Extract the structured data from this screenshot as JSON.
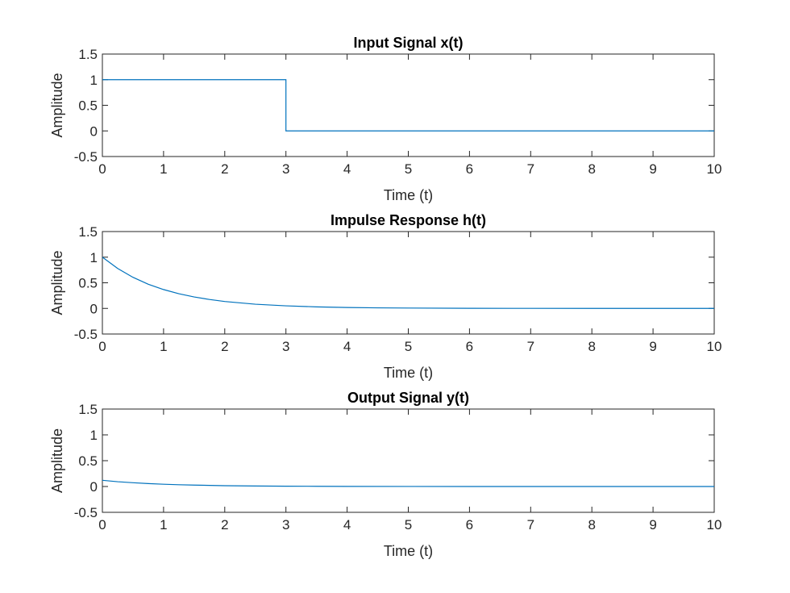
{
  "chart_data": [
    {
      "type": "line",
      "title": "Input Signal x(t)",
      "xlabel": "Time (t)",
      "ylabel": "Amplitude",
      "xlim": [
        0,
        10
      ],
      "ylim": [
        -0.5,
        1.5
      ],
      "xticks": [
        0,
        1,
        2,
        3,
        4,
        5,
        6,
        7,
        8,
        9,
        10
      ],
      "yticks": [
        -0.5,
        0,
        0.5,
        1,
        1.5
      ],
      "grid": false,
      "color": "#0072bd",
      "series": [
        {
          "x": [
            0,
            3,
            3,
            10
          ],
          "y": [
            1,
            1,
            0,
            0
          ]
        }
      ]
    },
    {
      "type": "line",
      "title": "Impulse Response h(t)",
      "xlabel": "Time (t)",
      "ylabel": "Amplitude",
      "xlim": [
        0,
        10
      ],
      "ylim": [
        -0.5,
        1.5
      ],
      "xticks": [
        0,
        1,
        2,
        3,
        4,
        5,
        6,
        7,
        8,
        9,
        10
      ],
      "yticks": [
        -0.5,
        0,
        0.5,
        1,
        1.5
      ],
      "grid": false,
      "color": "#0072bd",
      "series": [
        {
          "x": [
            0,
            0.25,
            0.5,
            0.75,
            1,
            1.25,
            1.5,
            1.75,
            2,
            2.5,
            3,
            3.5,
            4,
            4.5,
            5,
            6,
            7,
            8,
            9,
            10
          ],
          "y": [
            1,
            0.779,
            0.607,
            0.472,
            0.368,
            0.287,
            0.223,
            0.174,
            0.135,
            0.082,
            0.05,
            0.03,
            0.018,
            0.011,
            0.007,
            0.002,
            0.001,
            0,
            0,
            0
          ]
        }
      ]
    },
    {
      "type": "line",
      "title": "Output Signal y(t)",
      "xlabel": "Time (t)",
      "ylabel": "Amplitude",
      "xlim": [
        0,
        10
      ],
      "ylim": [
        -0.5,
        1.5
      ],
      "xticks": [
        0,
        1,
        2,
        3,
        4,
        5,
        6,
        7,
        8,
        9,
        10
      ],
      "yticks": [
        -0.5,
        0,
        0.5,
        1,
        1.5
      ],
      "grid": false,
      "color": "#0072bd",
      "series": [
        {
          "x": [
            0,
            0.25,
            0.5,
            0.75,
            1,
            1.25,
            1.5,
            2,
            2.5,
            3,
            3.5,
            4,
            5,
            6,
            7,
            8,
            9,
            10
          ],
          "y": [
            0.12,
            0.093,
            0.073,
            0.057,
            0.044,
            0.034,
            0.027,
            0.016,
            0.01,
            0.006,
            0.004,
            0.002,
            0.001,
            0,
            0,
            0,
            0,
            0
          ]
        }
      ]
    }
  ]
}
